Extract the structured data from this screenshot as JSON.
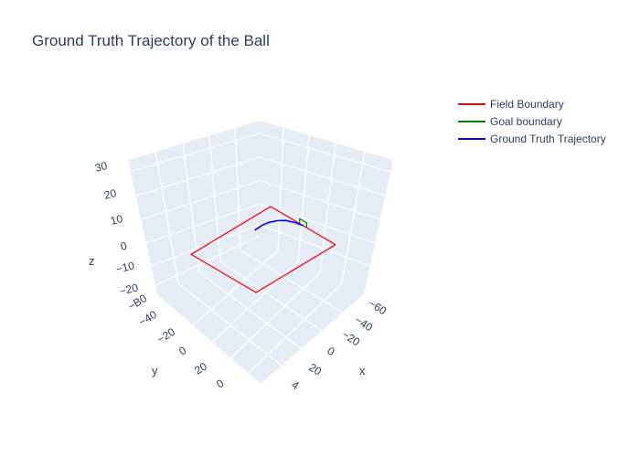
{
  "chart_data": {
    "type": "line3d",
    "title": "Ground Truth Trajectory of the Ball",
    "axes": {
      "x": {
        "label": "x",
        "range": [
          -70,
          45
        ],
        "ticks": [
          "−60",
          "−40",
          "−20",
          "0",
          "20",
          "4"
        ]
      },
      "y": {
        "label": "y",
        "range": [
          -55,
          45
        ],
        "ticks": [
          "−B0",
          "−40",
          "−20",
          "0",
          "20",
          "0"
        ]
      },
      "z": {
        "label": "z",
        "range": [
          -30,
          30
        ],
        "ticks": [
          "30",
          "20",
          "10",
          "0",
          "−10",
          "−20"
        ]
      }
    },
    "legend_position": "top-right",
    "series": [
      {
        "name": "Field Boundary",
        "color": "#ff0000",
        "points": [
          [
            -52.5,
            -34,
            0
          ],
          [
            52.5,
            -34,
            0
          ],
          [
            52.5,
            34,
            0
          ],
          [
            -52.5,
            34,
            0
          ],
          [
            -52.5,
            -34,
            0
          ]
        ]
      },
      {
        "name": "Goal boundary",
        "color": "#008000",
        "points": [
          [
            -52.5,
            -3.66,
            0
          ],
          [
            -52.5,
            -3.66,
            2.44
          ],
          [
            -52.5,
            3.66,
            2.44
          ],
          [
            -52.5,
            3.66,
            0
          ]
        ]
      },
      {
        "name": "Ground Truth Trajectory",
        "color": "#0000ff",
        "points": [
          [
            -52.5,
            0,
            0
          ],
          [
            -45,
            3,
            2.5
          ],
          [
            -37,
            6,
            4.5
          ],
          [
            -29,
            8.5,
            5.5
          ],
          [
            -21,
            10.5,
            6
          ],
          [
            -13,
            12,
            5.8
          ],
          [
            -5,
            13,
            5
          ]
        ]
      }
    ]
  }
}
